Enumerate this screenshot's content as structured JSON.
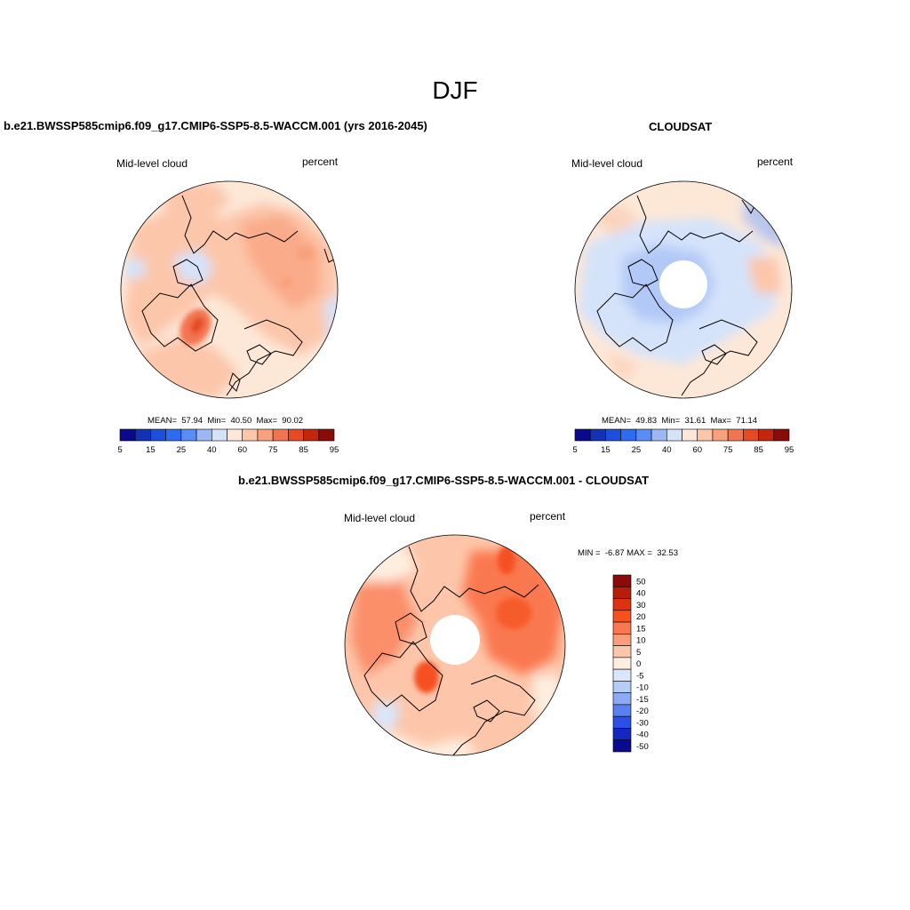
{
  "figure": {
    "season": "DJF"
  },
  "panels": {
    "model": {
      "title": "b.e21.BWSSP585cmip6.f09_g17.CMIP6-SSP5-8.5-WACCM.001 (yrs 2016-2045)",
      "left_label": "Mid-level cloud",
      "right_label": "percent",
      "stats": "MEAN=  57.94  Min=  40.50  Max=  90.02",
      "mean": 57.94,
      "min": 40.5,
      "max": 90.02
    },
    "obs": {
      "title": "CLOUDSAT",
      "left_label": "Mid-level cloud",
      "right_label": "percent",
      "stats": "MEAN=  49.83  Min=  31.61  Max=  71.14",
      "mean": 49.83,
      "min": 31.61,
      "max": 71.14
    },
    "diff": {
      "title": "b.e21.BWSSP585cmip6.f09_g17.CMIP6-SSP5-8.5-WACCM.001 - CLOUDSAT",
      "left_label": "Mid-level cloud",
      "right_label": "percent",
      "stats": "MIN =  -6.87 MAX =  32.53",
      "min": -6.87,
      "max": 32.53
    }
  },
  "colorbars": {
    "abs": {
      "colors": [
        "#0a0a8c",
        "#1232b4",
        "#1c50dc",
        "#2d6cf0",
        "#5a8cf5",
        "#9bb8f5",
        "#d4e3fa",
        "#fde8d8",
        "#fcc6aa",
        "#f9a07c",
        "#f37450",
        "#e44a24",
        "#c3260c",
        "#8b0a0a"
      ],
      "tick_labels": [
        "5",
        "15",
        "25",
        "40",
        "60",
        "75",
        "85",
        "95"
      ]
    },
    "diff": {
      "colors": [
        "#8b0a0a",
        "#b41e0a",
        "#dc320f",
        "#f55020",
        "#fa7850",
        "#fb9d7a",
        "#fdc6aa",
        "#feeee0",
        "#dae6fa",
        "#b5cdf5",
        "#8caaf5",
        "#5a80f0",
        "#2a50e6",
        "#1428be",
        "#0a0a8c"
      ],
      "tick_labels": [
        "50",
        "40",
        "30",
        "20",
        "15",
        "10",
        "5",
        "0",
        "-5",
        "-10",
        "-15",
        "-20",
        "-30",
        "-40",
        "-50"
      ]
    }
  }
}
